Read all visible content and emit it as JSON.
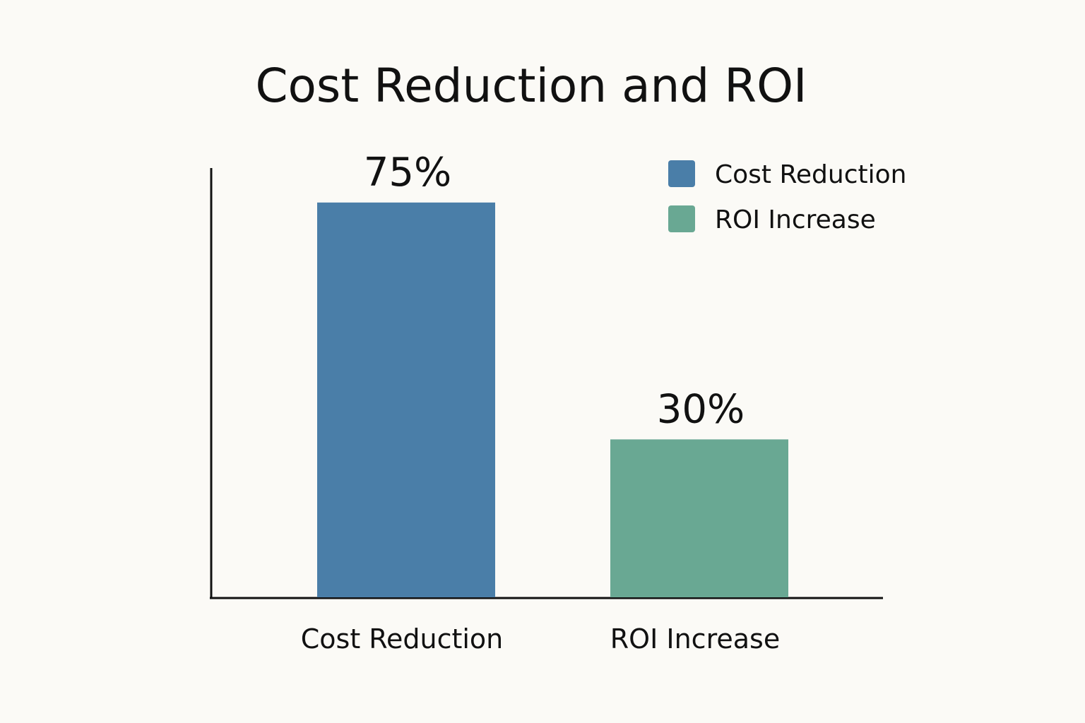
{
  "chart_data": {
    "type": "bar",
    "title": "Cost Reduction and ROI",
    "xlabel": "",
    "ylabel": "",
    "ylim": [
      0,
      90
    ],
    "grid": false,
    "legend_position": "top-right",
    "categories": [
      "Cost Reduction",
      "ROI Increase"
    ],
    "values": [
      75,
      30
    ],
    "data_labels": [
      "75%",
      "30%"
    ],
    "colors": [
      "#4a7ea8",
      "#69a893"
    ],
    "legend": [
      {
        "label": "Cost Reduction",
        "color": "#4a7ea8"
      },
      {
        "label": "ROI Increase",
        "color": "#69a893"
      }
    ]
  }
}
